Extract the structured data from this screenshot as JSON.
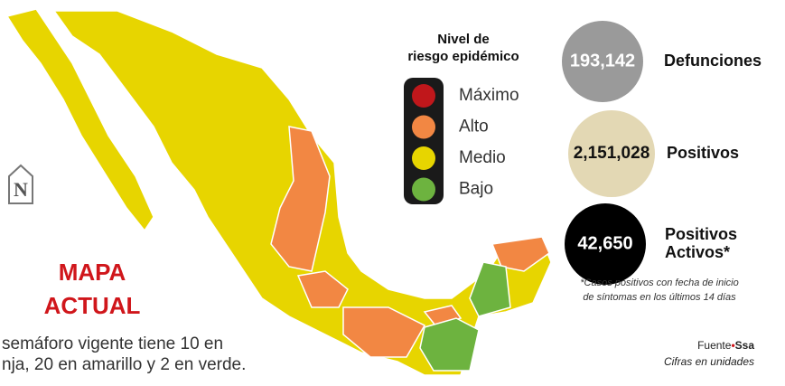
{
  "legend": {
    "title": [
      "Nivel de",
      "riesgo epidémico"
    ],
    "items": [
      {
        "label": "Máximo",
        "color": "#c0171b"
      },
      {
        "label": "Alto",
        "color": "#f28743"
      },
      {
        "label": "Medio",
        "color": "#e7d500"
      },
      {
        "label": "Bajo",
        "color": "#6db33f"
      }
    ]
  },
  "stats": [
    {
      "value": "193,142",
      "label": [
        "Defunciones"
      ]
    },
    {
      "value": "2,151,028",
      "label": [
        "Positivos"
      ]
    },
    {
      "value": "42,650",
      "label": [
        "Positivos",
        "Activos*"
      ]
    }
  ],
  "footnote": [
    "*Casos positivos con fecha de inicio",
    "de síntomas en los últimos 14 días"
  ],
  "source": {
    "prefix": "Fuente",
    "bullet": "•",
    "name": "Ssa",
    "units": "Cifras en unidades"
  },
  "map_title": [
    "MAPA",
    "ACTUAL"
  ],
  "description": [
    "semáforo vigente tiene 10 en",
    "nja, 20 en amarillo y 2 en verde."
  ],
  "logo": "N"
}
